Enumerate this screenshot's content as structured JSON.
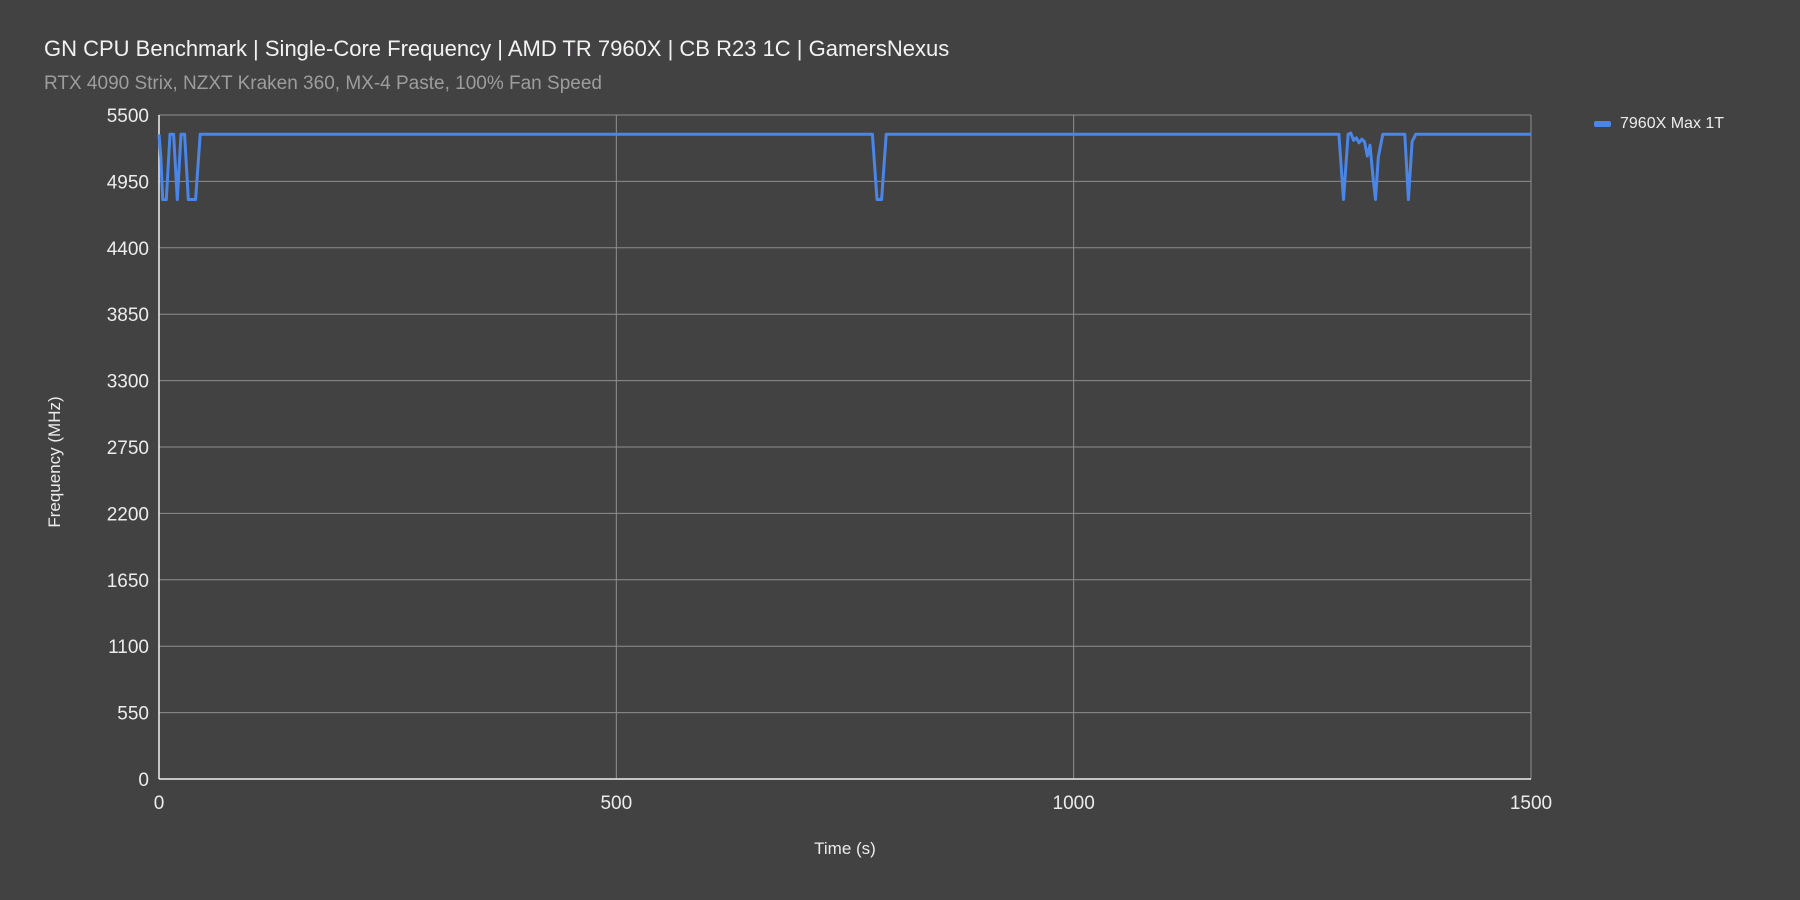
{
  "chart_data": {
    "type": "line",
    "title": "GN CPU Benchmark | Single-Core Frequency | AMD TR 7960X | CB R23 1C | GamersNexus",
    "subtitle": "RTX 4090 Strix, NZXT Kraken 360, MX-4 Paste, 100% Fan Speed",
    "xlabel": "Time (s)",
    "ylabel": "Frequency (MHz)",
    "xlim": [
      0,
      1500
    ],
    "ylim": [
      0,
      5500
    ],
    "x_ticks": [
      "0",
      "500",
      "1000",
      "1500"
    ],
    "y_ticks": [
      "0",
      "550",
      "1100",
      "1650",
      "2200",
      "2750",
      "3300",
      "3850",
      "4400",
      "4950",
      "5500"
    ],
    "grid": true,
    "legend_position": "top-right",
    "series": [
      {
        "name": "7960X Max 1T",
        "color": "#4a86e8",
        "points": [
          [
            0,
            5340
          ],
          [
            2,
            5150
          ],
          [
            4,
            4800
          ],
          [
            8,
            4800
          ],
          [
            12,
            5340
          ],
          [
            16,
            5340
          ],
          [
            20,
            4800
          ],
          [
            24,
            5340
          ],
          [
            28,
            5340
          ],
          [
            32,
            4800
          ],
          [
            40,
            4800
          ],
          [
            45,
            5340
          ],
          [
            780,
            5340
          ],
          [
            785,
            4800
          ],
          [
            790,
            4800
          ],
          [
            795,
            5340
          ],
          [
            1290,
            5340
          ],
          [
            1295,
            4800
          ],
          [
            1300,
            5340
          ],
          [
            1303,
            5350
          ],
          [
            1306,
            5290
          ],
          [
            1309,
            5310
          ],
          [
            1312,
            5270
          ],
          [
            1315,
            5300
          ],
          [
            1318,
            5280
          ],
          [
            1321,
            5160
          ],
          [
            1324,
            5250
          ],
          [
            1327,
            5000
          ],
          [
            1330,
            4800
          ],
          [
            1333,
            5150
          ],
          [
            1338,
            5340
          ],
          [
            1362,
            5340
          ],
          [
            1366,
            4800
          ],
          [
            1370,
            5280
          ],
          [
            1374,
            5340
          ],
          [
            1500,
            5340
          ]
        ]
      }
    ]
  }
}
